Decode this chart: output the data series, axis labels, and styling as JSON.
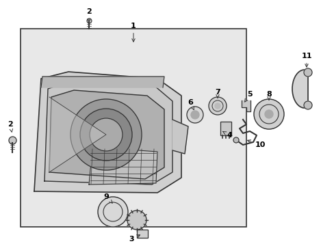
{
  "bg_color": "#ffffff",
  "box_bg": "#e8e8e8",
  "line_color": "#333333",
  "text_color": "#000000",
  "label_fontsize": 8
}
